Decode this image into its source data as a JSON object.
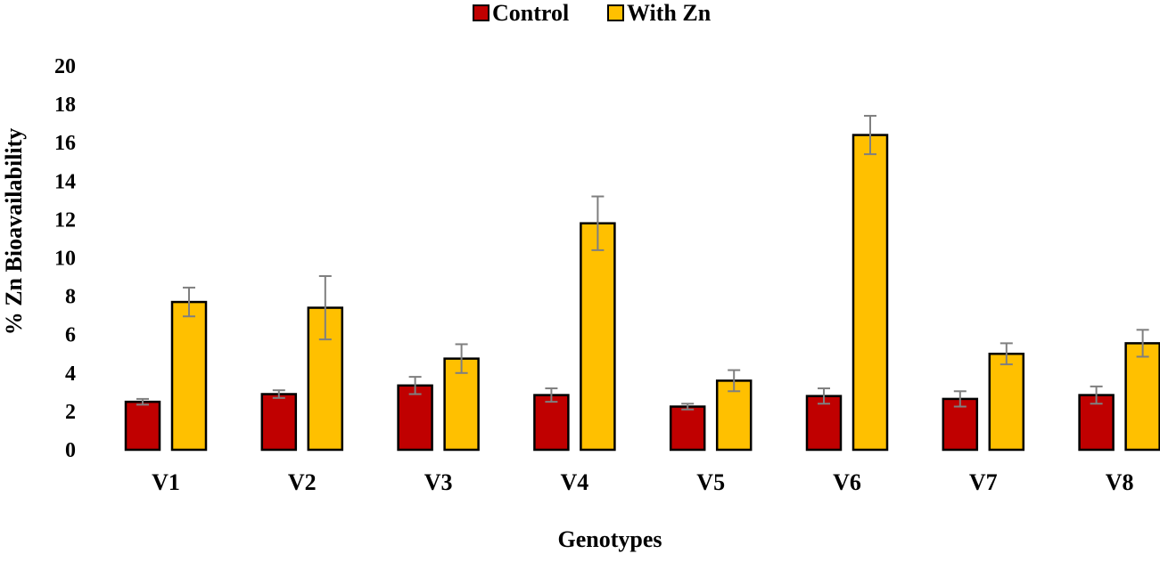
{
  "chart_data": {
    "type": "bar",
    "title": "",
    "xlabel": "Genotypes",
    "ylabel": "% Zn Bioavailability",
    "ylim": [
      0,
      20
    ],
    "yticks": [
      "0",
      "2",
      "4",
      "6",
      "8",
      "10",
      "12",
      "14",
      "16",
      "18",
      "20"
    ],
    "categories": [
      "V1",
      "V2",
      "V3",
      "V4",
      "V5",
      "V6",
      "V7",
      "V8"
    ],
    "grid": false,
    "legend_position": "top-center",
    "series": [
      {
        "name": "Control",
        "color": "#C00000",
        "values": [
          2.5,
          2.9,
          3.35,
          2.85,
          2.25,
          2.8,
          2.65,
          2.85
        ],
        "errors": [
          0.15,
          0.2,
          0.45,
          0.35,
          0.15,
          0.4,
          0.4,
          0.45
        ]
      },
      {
        "name": "With Zn",
        "color": "#FFC000",
        "values": [
          7.7,
          7.4,
          4.75,
          11.8,
          3.6,
          16.4,
          5.0,
          5.55
        ],
        "errors": [
          0.75,
          1.65,
          0.75,
          1.4,
          0.55,
          1.0,
          0.55,
          0.7
        ]
      }
    ]
  }
}
